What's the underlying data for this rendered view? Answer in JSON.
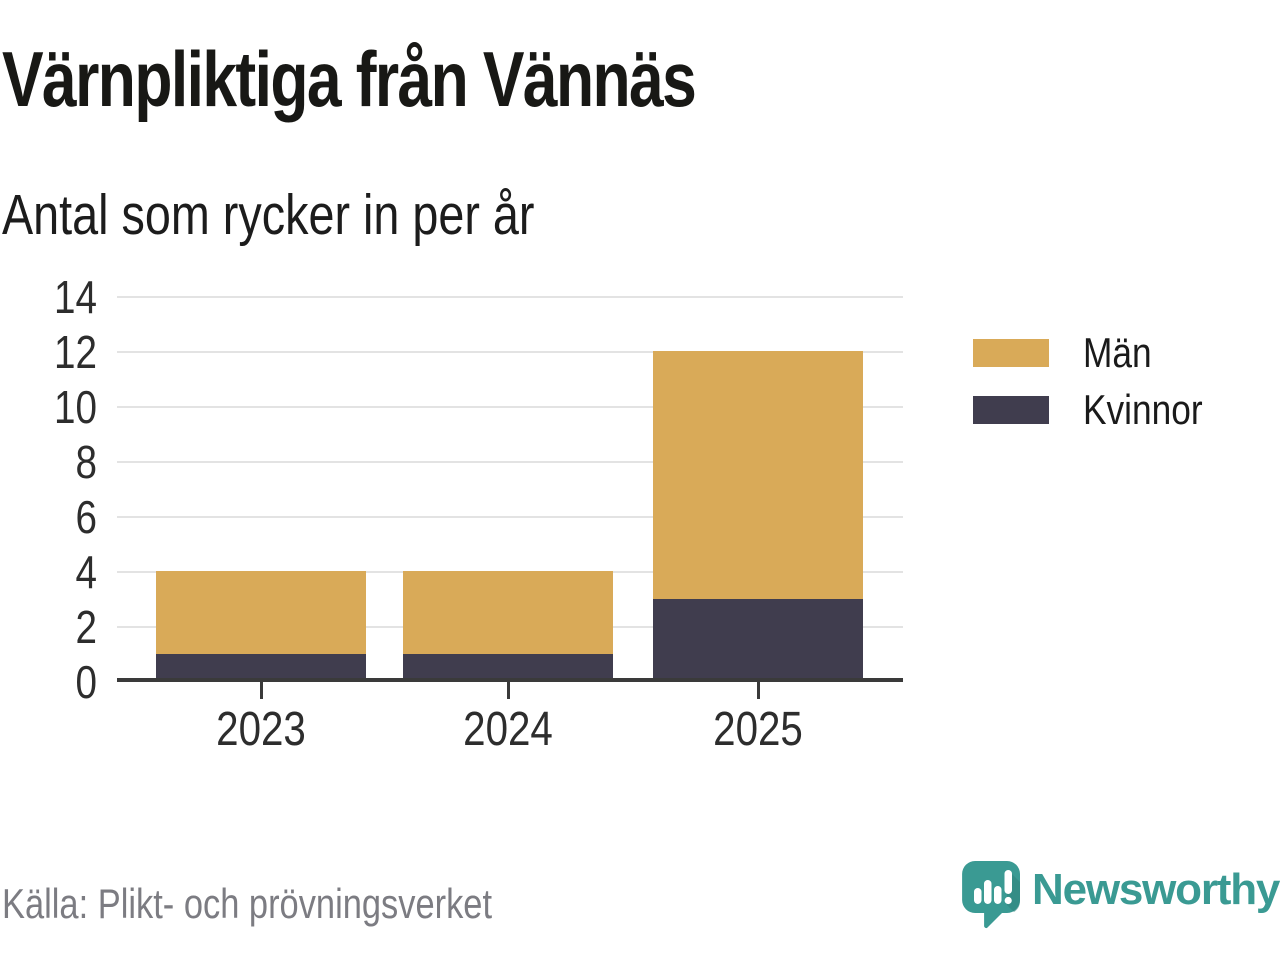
{
  "title": "Värnpliktiga från Vännäs",
  "subtitle": "Antal som rycker in per år",
  "source": "Källa: Plikt- och prövningsverket",
  "brand": {
    "name": "Newsworthy",
    "color": "#3a9a93"
  },
  "colors": {
    "men": "#d9aa58",
    "women": "#403d4e",
    "grid": "#e3e3e3",
    "axis": "#3a3a3a",
    "title_text": "#181815",
    "muted_text": "#7c7c82"
  },
  "legend": {
    "items": [
      {
        "label": "Män",
        "color": "#d9aa58"
      },
      {
        "label": "Kvinnor",
        "color": "#403d4e"
      }
    ]
  },
  "chart_data": {
    "type": "bar",
    "stacked": true,
    "title": "Värnpliktiga från Vännäs",
    "subtitle": "Antal som rycker in per år",
    "categories": [
      "2023",
      "2024",
      "2025"
    ],
    "series": [
      {
        "name": "Män",
        "color": "#d9aa58",
        "values": [
          3,
          3,
          9
        ]
      },
      {
        "name": "Kvinnor",
        "color": "#403d4e",
        "values": [
          1,
          1,
          3
        ]
      }
    ],
    "stack_bottom_to_top": [
      "Kvinnor",
      "Män"
    ],
    "totals": [
      4,
      4,
      12
    ],
    "xlabel": "",
    "ylabel": "",
    "ylim": [
      0,
      14
    ],
    "yticks": [
      0,
      2,
      4,
      6,
      8,
      10,
      12,
      14
    ],
    "grid": true,
    "legend_position": "right"
  }
}
